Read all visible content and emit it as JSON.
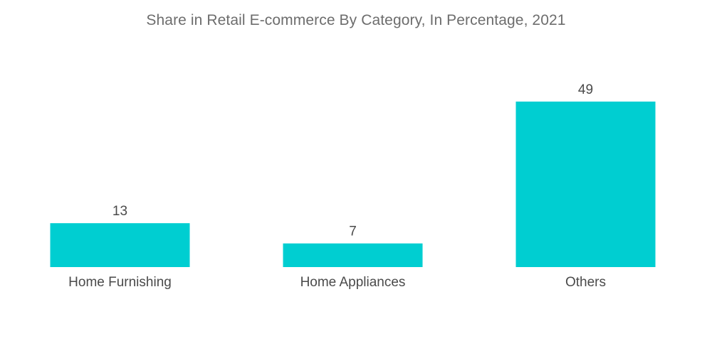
{
  "chart_data": {
    "type": "bar",
    "title": "Share in Retail E-commerce By Category, In Percentage, 2021",
    "xlabel": "",
    "ylabel": "",
    "categories": [
      "Home Furnishing",
      "Home Appliances",
      "Others"
    ],
    "values": [
      13,
      7,
      49
    ],
    "data_labels": [
      "13",
      "7",
      "49"
    ],
    "ylim": [
      0,
      49
    ],
    "grid": false,
    "legend": "none",
    "bar_color": "#00ced1"
  }
}
